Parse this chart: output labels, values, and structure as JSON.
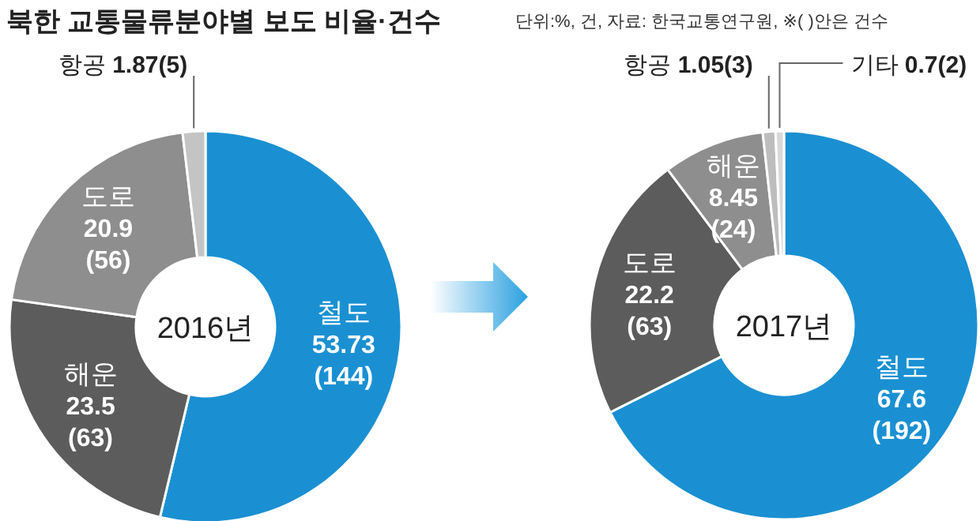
{
  "chart_data": [
    {
      "type": "donut",
      "title": "북한 교통물류분야별 보도 비율·건수",
      "annotations": [
        "2016년"
      ],
      "categories": [
        "철도",
        "해운",
        "도로",
        "항공"
      ],
      "values": [
        53.73,
        23.5,
        20.9,
        1.87
      ],
      "value_labels": [
        "53.73(144)",
        "23.5(63)",
        "20.9(56)",
        "1.87(5)"
      ],
      "colors": [
        "#1a90d2",
        "#5c5c5c",
        "#8e8e8e",
        "#c4c4c4"
      ]
    },
    {
      "type": "donut",
      "subtitle": "단위:%, 건, 자료: 한국교통연구원, ※( )안은 건수",
      "annotations": [
        "2017년"
      ],
      "categories": [
        "철도",
        "도로",
        "해운",
        "항공",
        "기타"
      ],
      "values": [
        67.6,
        22.2,
        8.45,
        1.05,
        0.7
      ],
      "value_labels": [
        "67.6(192)",
        "22.2(63)",
        "8.45(24)",
        "1.05(3)",
        "0.7(2)"
      ],
      "colors": [
        "#1a90d2",
        "#5c5c5c",
        "#8e8e8e",
        "#bdbdbd",
        "#d9d9d9"
      ]
    }
  ]
}
